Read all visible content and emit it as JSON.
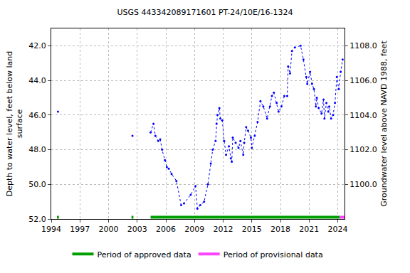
{
  "chart_data": {
    "type": "line",
    "title": "USGS 443342089171601 PT-24/10E/16-1324",
    "y_label": "Depth to water level, feet below land surface",
    "y2_label": "Groundwater level above NAVD 1988, feet",
    "xlim": [
      1994,
      2024.7
    ],
    "xticks": [
      1994,
      1997,
      2000,
      2003,
      2006,
      2009,
      2012,
      2015,
      2018,
      2021,
      2024
    ],
    "ylim": [
      52,
      41
    ],
    "yticks": [
      {
        "value": 42,
        "label": "42.0"
      },
      {
        "value": 44,
        "label": "44.0"
      },
      {
        "value": 46,
        "label": "46.0"
      },
      {
        "value": 48,
        "label": "48.0"
      },
      {
        "value": 50,
        "label": "50.0"
      },
      {
        "value": 52,
        "label": "52.0"
      }
    ],
    "y2lim": [
      1098,
      1109
    ],
    "y2ticks": [
      {
        "value": 1100,
        "label": "1100.0"
      },
      {
        "value": 1102,
        "label": "1102.0"
      },
      {
        "value": 1104,
        "label": "1104.0"
      },
      {
        "value": 1106,
        "label": "1106.0"
      },
      {
        "value": 1108,
        "label": "1108.0"
      }
    ],
    "grid": true,
    "legend": "bottom",
    "series": [
      {
        "color": "#0000ff",
        "marker": "circle",
        "line_style": "dotted",
        "x": [
          1994.7,
          1998.0,
          2002.5,
          2003.5,
          2004.4,
          2004.7,
          2004.9,
          2005.2,
          2005.4,
          2005.6,
          2005.9,
          2006.1,
          2006.3,
          2006.6,
          2007.1,
          2007.6,
          2007.9,
          2008.6,
          2009.1,
          2009.3,
          2009.6,
          2010.0,
          2010.4,
          2010.7,
          2010.9,
          2011.2,
          2011.3,
          2011.4,
          2011.6,
          2011.7,
          2011.9,
          2012.1,
          2012.3,
          2012.6,
          2012.8,
          2012.9,
          2013.0,
          2013.3,
          2013.6,
          2013.8,
          2014.1,
          2014.2,
          2014.4,
          2014.6,
          2014.9,
          2015.0,
          2015.3,
          2015.6,
          2015.9,
          2016.2,
          2016.6,
          2016.9,
          2017.1,
          2017.3,
          2017.6,
          2017.8,
          2018.1,
          2018.4,
          2018.7,
          2018.8,
          2019.0,
          2019.2,
          2019.5,
          2020.1,
          2020.4,
          2020.7,
          2020.8,
          2021.1,
          2021.3,
          2021.5,
          2021.7,
          2021.8,
          2022.0,
          2022.3,
          2022.5,
          2022.6,
          2022.8,
          2023.0,
          2023.1,
          2023.3,
          2023.5,
          2023.7,
          2023.9,
          2024.1,
          2024.3,
          2024.5
        ],
        "values": [
          45.8,
          null,
          47.2,
          null,
          47.0,
          46.5,
          47.2,
          47.5,
          47.4,
          48.0,
          48.6,
          49.0,
          49.1,
          49.4,
          49.8,
          51.2,
          51.1,
          50.6,
          50.1,
          51.4,
          51.2,
          51.0,
          50.0,
          48.8,
          48.0,
          47.5,
          46.5,
          46.0,
          45.6,
          46.2,
          46.3,
          47.5,
          48.3,
          47.8,
          48.5,
          48.7,
          47.3,
          47.6,
          47.9,
          47.5,
          48.3,
          47.6,
          46.7,
          46.9,
          47.3,
          47.9,
          47.2,
          46.4,
          45.2,
          45.5,
          46.2,
          45.5,
          44.9,
          44.7,
          45.3,
          45.8,
          45.5,
          44.9,
          44.9,
          43.2,
          43.6,
          42.3,
          42.1,
          42.0,
          42.8,
          43.8,
          44.2,
          43.5,
          44.2,
          44.5,
          45.5,
          45.0,
          45.6,
          45.9,
          45.1,
          46.2,
          45.3,
          45.8,
          45.5,
          46.2,
          46.0,
          45.3,
          43.8,
          44.5,
          43.5,
          42.8
        ]
      },
      {
        "name": "Period of approved data",
        "color": "#00a000",
        "marker": "none",
        "line_style": "solid",
        "x": [
          1994.6,
          1994.8,
          1994.9,
          2002.4,
          2002.6,
          2002.7,
          2004.4,
          2024.2
        ],
        "values": [
          51.9,
          51.9,
          null,
          51.9,
          51.9,
          null,
          51.9,
          51.9
        ]
      },
      {
        "name": "Period of provisional data",
        "color": "#ff44ff",
        "marker": "none",
        "line_style": "solid",
        "x": [
          2024.2,
          2024.7
        ],
        "values": [
          51.9,
          51.9
        ]
      }
    ]
  }
}
